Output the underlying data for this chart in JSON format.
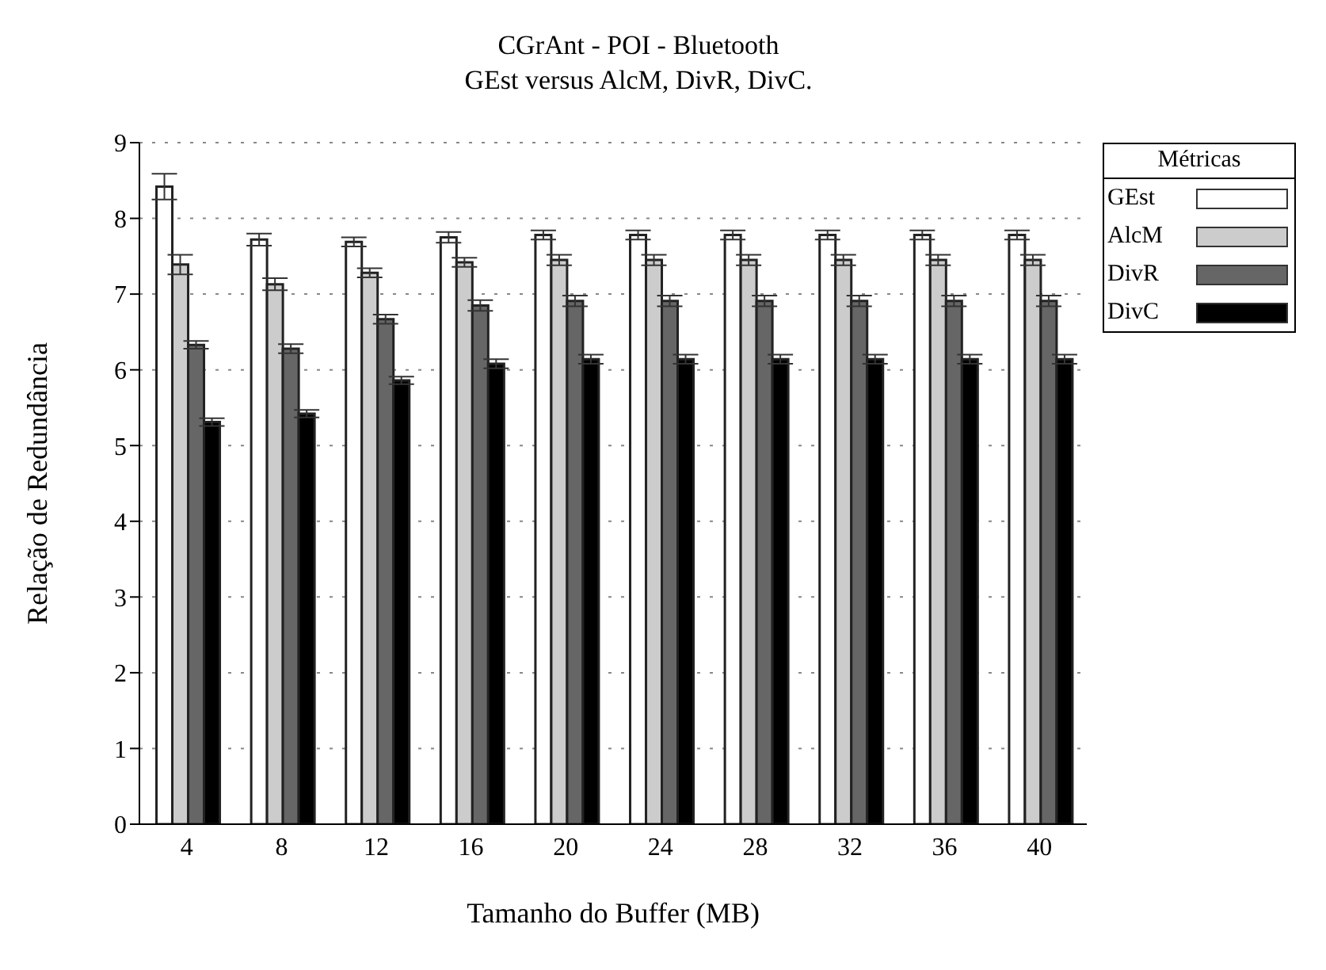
{
  "chart_data": {
    "type": "bar",
    "title": "CGrAnt - POI - Bluetooth",
    "subtitle": "GEst versus AlcM, DivR, DivC.",
    "xlabel": "Tamanho do Buffer (MB)",
    "ylabel": "Relação de Redundância",
    "legend_title": "Métricas",
    "categories": [
      "4",
      "8",
      "12",
      "16",
      "20",
      "24",
      "28",
      "32",
      "36",
      "40"
    ],
    "series": [
      {
        "name": "GEst",
        "color": "#ffffff",
        "values": [
          8.42,
          7.72,
          7.69,
          7.75,
          7.78,
          7.78,
          7.78,
          7.78,
          7.78,
          7.78
        ],
        "errors": [
          0.17,
          0.08,
          0.06,
          0.07,
          0.06,
          0.06,
          0.06,
          0.06,
          0.06,
          0.06
        ]
      },
      {
        "name": "AlcM",
        "color": "#cccccc",
        "values": [
          7.39,
          7.13,
          7.28,
          7.42,
          7.45,
          7.45,
          7.45,
          7.45,
          7.45,
          7.45
        ],
        "errors": [
          0.13,
          0.08,
          0.06,
          0.06,
          0.07,
          0.07,
          0.07,
          0.07,
          0.07,
          0.07
        ]
      },
      {
        "name": "DivR",
        "color": "#666666",
        "values": [
          6.33,
          6.28,
          6.67,
          6.85,
          6.91,
          6.91,
          6.91,
          6.91,
          6.91,
          6.91
        ],
        "errors": [
          0.05,
          0.06,
          0.06,
          0.07,
          0.07,
          0.07,
          0.07,
          0.07,
          0.07,
          0.07
        ]
      },
      {
        "name": "DivC",
        "color": "#000000",
        "values": [
          5.31,
          5.42,
          5.86,
          6.08,
          6.14,
          6.14,
          6.14,
          6.14,
          6.14,
          6.14
        ],
        "errors": [
          0.05,
          0.05,
          0.05,
          0.06,
          0.06,
          0.06,
          0.06,
          0.06,
          0.06,
          0.06
        ]
      }
    ],
    "ylim": [
      0,
      9
    ],
    "yticks": [
      0,
      1,
      2,
      3,
      4,
      5,
      6,
      7,
      8,
      9
    ],
    "grid": "y",
    "legend": "top right"
  }
}
